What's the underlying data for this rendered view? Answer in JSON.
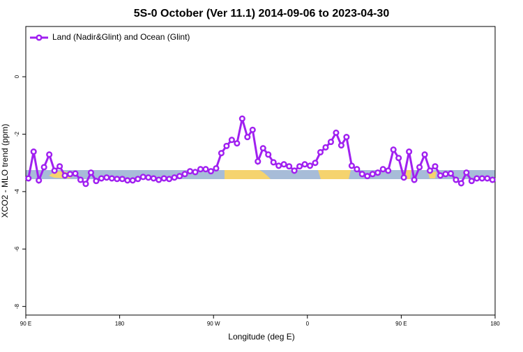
{
  "chart_data": {
    "type": "line",
    "title": "5S-0 October (Ver 11.1)   2014-09-06 to 2023-04-30",
    "x_label": "Longitude (deg E)",
    "y_label": "XCO2 - MLO trend (ppm)",
    "x": [
      92.5,
      97.5,
      102.5,
      107.5,
      112.5,
      117.5,
      122.5,
      127.5,
      132.5,
      137.5,
      142.5,
      147.5,
      152.5,
      157.5,
      162.5,
      167.5,
      172.5,
      177.5,
      182.5,
      187.5,
      192.5,
      197.5,
      202.5,
      207.5,
      212.5,
      217.5,
      222.5,
      227.5,
      232.5,
      237.5,
      242.5,
      247.5,
      252.5,
      257.5,
      262.5,
      267.5,
      272.5,
      277.5,
      282.5,
      287.5,
      292.5,
      297.5,
      302.5,
      307.5,
      312.5,
      317.5,
      322.5,
      327.5,
      332.5,
      337.5,
      342.5,
      347.5,
      352.5,
      357.5,
      362.5,
      367.5,
      372.5,
      377.5,
      382.5,
      387.5,
      392.5,
      397.5,
      402.5,
      407.5,
      412.5,
      417.5,
      422.5,
      427.5,
      432.5,
      437.5,
      442.5,
      447.5,
      452.5,
      457.5,
      462.5,
      467.5,
      472.5,
      477.5,
      482.5,
      487.5,
      492.5,
      497.5,
      502.5,
      507.5,
      512.5,
      517.5,
      522.5,
      527.5,
      532.5,
      537.5
    ],
    "series": [
      {
        "name": "Land (Nadir&Glint) and Ocean (Glint)",
        "color": "#a020f0",
        "values": [
          -3.54,
          -2.61,
          -3.61,
          -3.15,
          -2.71,
          -3.27,
          -3.12,
          -3.44,
          -3.39,
          -3.37,
          -3.59,
          -3.73,
          -3.34,
          -3.63,
          -3.54,
          -3.51,
          -3.54,
          -3.56,
          -3.56,
          -3.61,
          -3.61,
          -3.56,
          -3.49,
          -3.51,
          -3.54,
          -3.59,
          -3.54,
          -3.56,
          -3.51,
          -3.46,
          -3.39,
          -3.29,
          -3.32,
          -3.22,
          -3.22,
          -3.29,
          -3.19,
          -2.66,
          -2.41,
          -2.2,
          -2.32,
          -1.46,
          -2.1,
          -1.85,
          -2.95,
          -2.49,
          -2.71,
          -2.98,
          -3.1,
          -3.05,
          -3.12,
          -3.27,
          -3.12,
          -3.05,
          -3.1,
          -3.0,
          -2.63,
          -2.46,
          -2.27,
          -1.95,
          -2.39,
          -2.1,
          -3.1,
          -3.22,
          -3.39,
          -3.46,
          -3.39,
          -3.34,
          -3.22,
          -3.27,
          -2.54,
          -2.83,
          -3.51,
          -2.61,
          -3.59,
          -3.15,
          -2.71,
          -3.27,
          -3.12,
          -3.44,
          -3.39,
          -3.37,
          -3.59,
          -3.71,
          -3.34,
          -3.63,
          -3.54,
          -3.54,
          -3.54,
          -3.59
        ]
      }
    ],
    "xlim": [
      90,
      540
    ],
    "xticks": [
      {
        "value": 90,
        "label": "90 E"
      },
      180,
      {
        "value": 270,
        "label": "90 W"
      },
      {
        "value": 360,
        "label": "0"
      },
      {
        "value": 450,
        "label": "90 E"
      },
      {
        "value": 540,
        "label": "180"
      }
    ],
    "ylim": [
      -8.3,
      1.75
    ],
    "yticks": [
      0,
      -2,
      -4,
      -6,
      -8
    ],
    "legend": "top-left"
  }
}
